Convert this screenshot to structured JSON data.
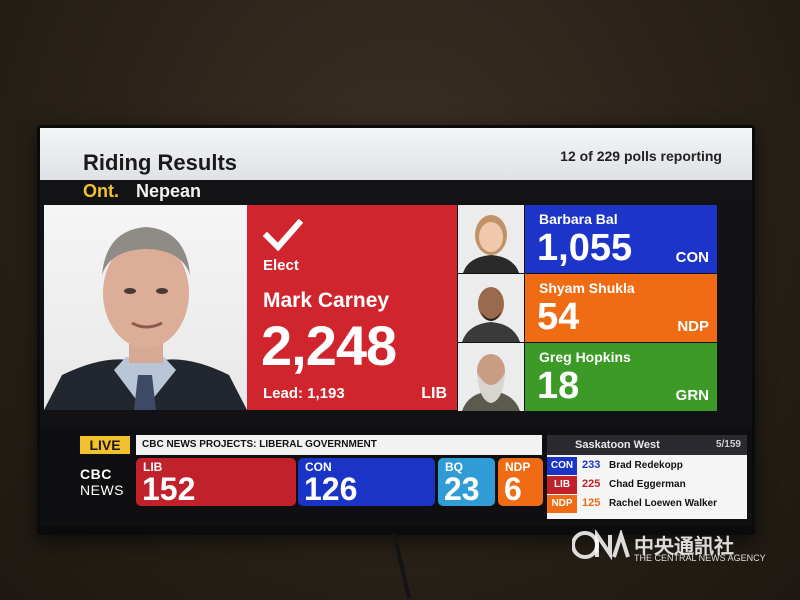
{
  "header": {
    "title": "Riding Results",
    "polls": "12 of 229 polls reporting",
    "province": "Ont.",
    "riding": "Nepean"
  },
  "winner": {
    "status": "Elect",
    "name": "Mark Carney",
    "votes": "2,248",
    "lead": "Lead: 1,193",
    "party": "LIB"
  },
  "candidates": [
    {
      "name": "Barbara Bal",
      "votes": "1,055",
      "party": "CON",
      "color": "#1c34c7"
    },
    {
      "name": "Shyam Shukla",
      "votes": "54",
      "party": "NDP",
      "color": "#ef6c14"
    },
    {
      "name": "Greg Hopkins",
      "votes": "18",
      "party": "GRN",
      "color": "#3c9a27"
    }
  ],
  "ticker": {
    "live": "LIVE",
    "headline": "CBC NEWS PROJECTS: LIBERAL GOVERNMENT",
    "brand_line1": "CBC",
    "brand_line2": "NEWS",
    "seats": [
      {
        "party": "LIB",
        "value": "152",
        "color": "#c0212b"
      },
      {
        "party": "CON",
        "value": "126",
        "color": "#1a34c5"
      },
      {
        "party": "BQ",
        "value": "23",
        "color": "#2f9cd6"
      },
      {
        "party": "NDP",
        "value": "6",
        "color": "#ef6c14"
      }
    ]
  },
  "side_panel": {
    "riding": "Saskatoon West",
    "count": "5/159",
    "rows": [
      {
        "party": "CON",
        "votes": "233",
        "name": "Brad Redekopp",
        "color": "#1a34c5"
      },
      {
        "party": "LIB",
        "votes": "225",
        "name": "Chad Eggerman",
        "color": "#c0212b"
      },
      {
        "party": "NDP",
        "votes": "125",
        "name": "Rachel Loewen Walker",
        "color": "#ef6c14"
      }
    ]
  },
  "watermark": {
    "chinese": "中央通訊社",
    "english": "THE CENTRAL NEWS AGENCY",
    "logo": "CNA"
  }
}
